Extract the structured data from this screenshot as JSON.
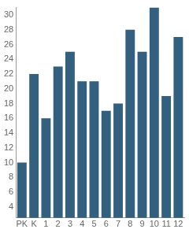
{
  "chart_data": {
    "type": "bar",
    "categories": [
      "PK",
      "K",
      "1",
      "2",
      "3",
      "4",
      "5",
      "6",
      "7",
      "8",
      "9",
      "10",
      "11",
      "12"
    ],
    "values": [
      10,
      22,
      16,
      23,
      25,
      21,
      21,
      17,
      18,
      28,
      25,
      31,
      19,
      27
    ],
    "color": "#34607f",
    "ylim": [
      2.5,
      31
    ],
    "yticks": [
      4,
      6,
      8,
      10,
      12,
      14,
      16,
      18,
      20,
      22,
      24,
      26,
      28,
      30
    ],
    "grid": false
  }
}
